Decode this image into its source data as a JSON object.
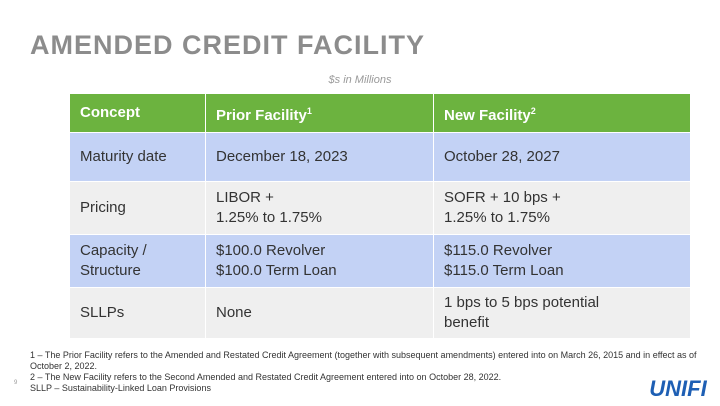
{
  "title": "AMENDED CREDIT FACILITY",
  "subtitle": "$s in Millions",
  "table": {
    "headers": [
      {
        "text": "Concept",
        "sup": ""
      },
      {
        "text": "Prior Facility",
        "sup": "1"
      },
      {
        "text": "New Facility",
        "sup": "2"
      }
    ],
    "rows": [
      {
        "concept": [
          "Maturity date"
        ],
        "prior": [
          "December 18, 2023"
        ],
        "new": [
          "October 28, 2027"
        ]
      },
      {
        "concept": [
          "Pricing"
        ],
        "prior": [
          "LIBOR +",
          "1.25% to 1.75%"
        ],
        "new": [
          "SOFR + 10 bps +",
          "1.25% to 1.75%"
        ]
      },
      {
        "concept": [
          "Capacity /",
          "Structure"
        ],
        "prior": [
          "$100.0 Revolver",
          "$100.0 Term Loan"
        ],
        "new": [
          "$115.0 Revolver",
          "$115.0 Term Loan"
        ]
      },
      {
        "concept": [
          "SLLPs"
        ],
        "prior": [
          "None"
        ],
        "new": [
          "1 bps to 5 bps potential",
          "benefit"
        ]
      }
    ]
  },
  "footnotes": [
    "1 – The Prior Facility refers to the Amended and Restated Credit Agreement (together with subsequent amendments) entered into on March 26, 2015 and in effect as of October 2, 2022.",
    "2 – The New Facility refers to the Second Amended and Restated Credit Agreement entered into on October 28, 2022.",
    "SLLP – Sustainability-Linked Loan Provisions"
  ],
  "page_number": "9",
  "logo_text": "UNIFI",
  "colors": {
    "header_green": "#6cb33f",
    "row_blue": "#c3d2f5",
    "row_grey": "#efefef",
    "logo_blue": "#1e5fb4"
  }
}
